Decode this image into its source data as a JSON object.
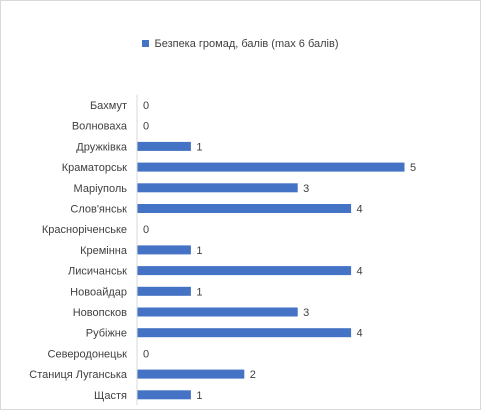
{
  "chart_data": {
    "type": "bar",
    "orientation": "horizontal",
    "legend": {
      "position": "top",
      "label": "Безпека громад, балів (max 6 балів)"
    },
    "categories": [
      "Бахмут",
      "Волноваха",
      "Дружківка",
      "Краматорськ",
      "Маріуполь",
      "Слов'янськ",
      "Красноріченське",
      "Кремінна",
      "Лисичанськ",
      "Новоайдар",
      "Новопсков",
      "Рубіжне",
      "Северодонецьк",
      "Станиця Луганська",
      "Щастя"
    ],
    "series": [
      {
        "name": "Безпека громад, балів (max 6 балів)",
        "values": [
          0,
          0,
          1,
          5,
          3,
          4,
          0,
          1,
          4,
          1,
          3,
          4,
          0,
          2,
          1
        ]
      }
    ],
    "xlim": [
      0,
      6
    ],
    "grid": false,
    "data_labels": true,
    "colors": {
      "bar": "#4472c4",
      "axis": "#d9d9d9",
      "text": "#404040"
    }
  }
}
